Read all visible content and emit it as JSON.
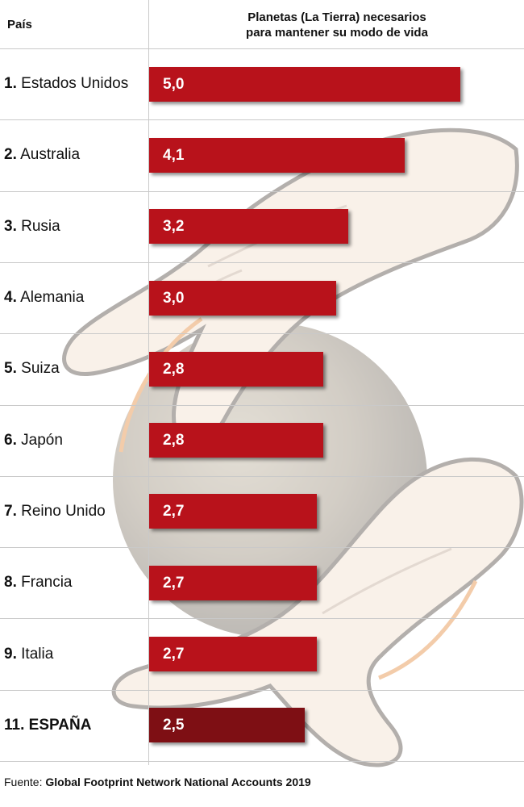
{
  "header": {
    "country_label": "País",
    "value_label_line1": "Planetas (La Tierra) necesarios",
    "value_label_line2": "para mantener su modo de vida"
  },
  "colors": {
    "bar": "#b8121b",
    "bar_highlight": "#7e0f14"
  },
  "chart_data": {
    "type": "bar",
    "orientation": "horizontal",
    "title": "Planetas (La Tierra) necesarios para mantener su modo de vida",
    "xlabel": "",
    "ylabel": "País",
    "xlim": [
      0,
      5.0
    ],
    "grid": false,
    "rows": [
      {
        "rank": "1.",
        "name": "Estados Unidos",
        "value": 5.0,
        "value_label": "5,0",
        "highlight": false
      },
      {
        "rank": "2.",
        "name": "Australia",
        "value": 4.1,
        "value_label": "4,1",
        "highlight": false
      },
      {
        "rank": "3.",
        "name": "Rusia",
        "value": 3.2,
        "value_label": "3,2",
        "highlight": false
      },
      {
        "rank": "4.",
        "name": "Alemania",
        "value": 3.0,
        "value_label": "3,0",
        "highlight": false
      },
      {
        "rank": "5.",
        "name": "Suiza",
        "value": 2.8,
        "value_label": "2,8",
        "highlight": false
      },
      {
        "rank": "6.",
        "name": "Japón",
        "value": 2.8,
        "value_label": "2,8",
        "highlight": false
      },
      {
        "rank": "7.",
        "name": "Reino Unido",
        "value": 2.7,
        "value_label": "2,7",
        "highlight": false
      },
      {
        "rank": "8.",
        "name": "Francia",
        "value": 2.7,
        "value_label": "2,7",
        "highlight": false
      },
      {
        "rank": "9.",
        "name": "Italia",
        "value": 2.7,
        "value_label": "2,7",
        "highlight": false
      },
      {
        "rank": "11.",
        "name": "ESPAÑA",
        "value": 2.5,
        "value_label": "2,5",
        "highlight": true
      }
    ]
  },
  "footer": {
    "prefix": "Fuente: ",
    "source": "Global Footprint Network National Accounts 2019"
  }
}
